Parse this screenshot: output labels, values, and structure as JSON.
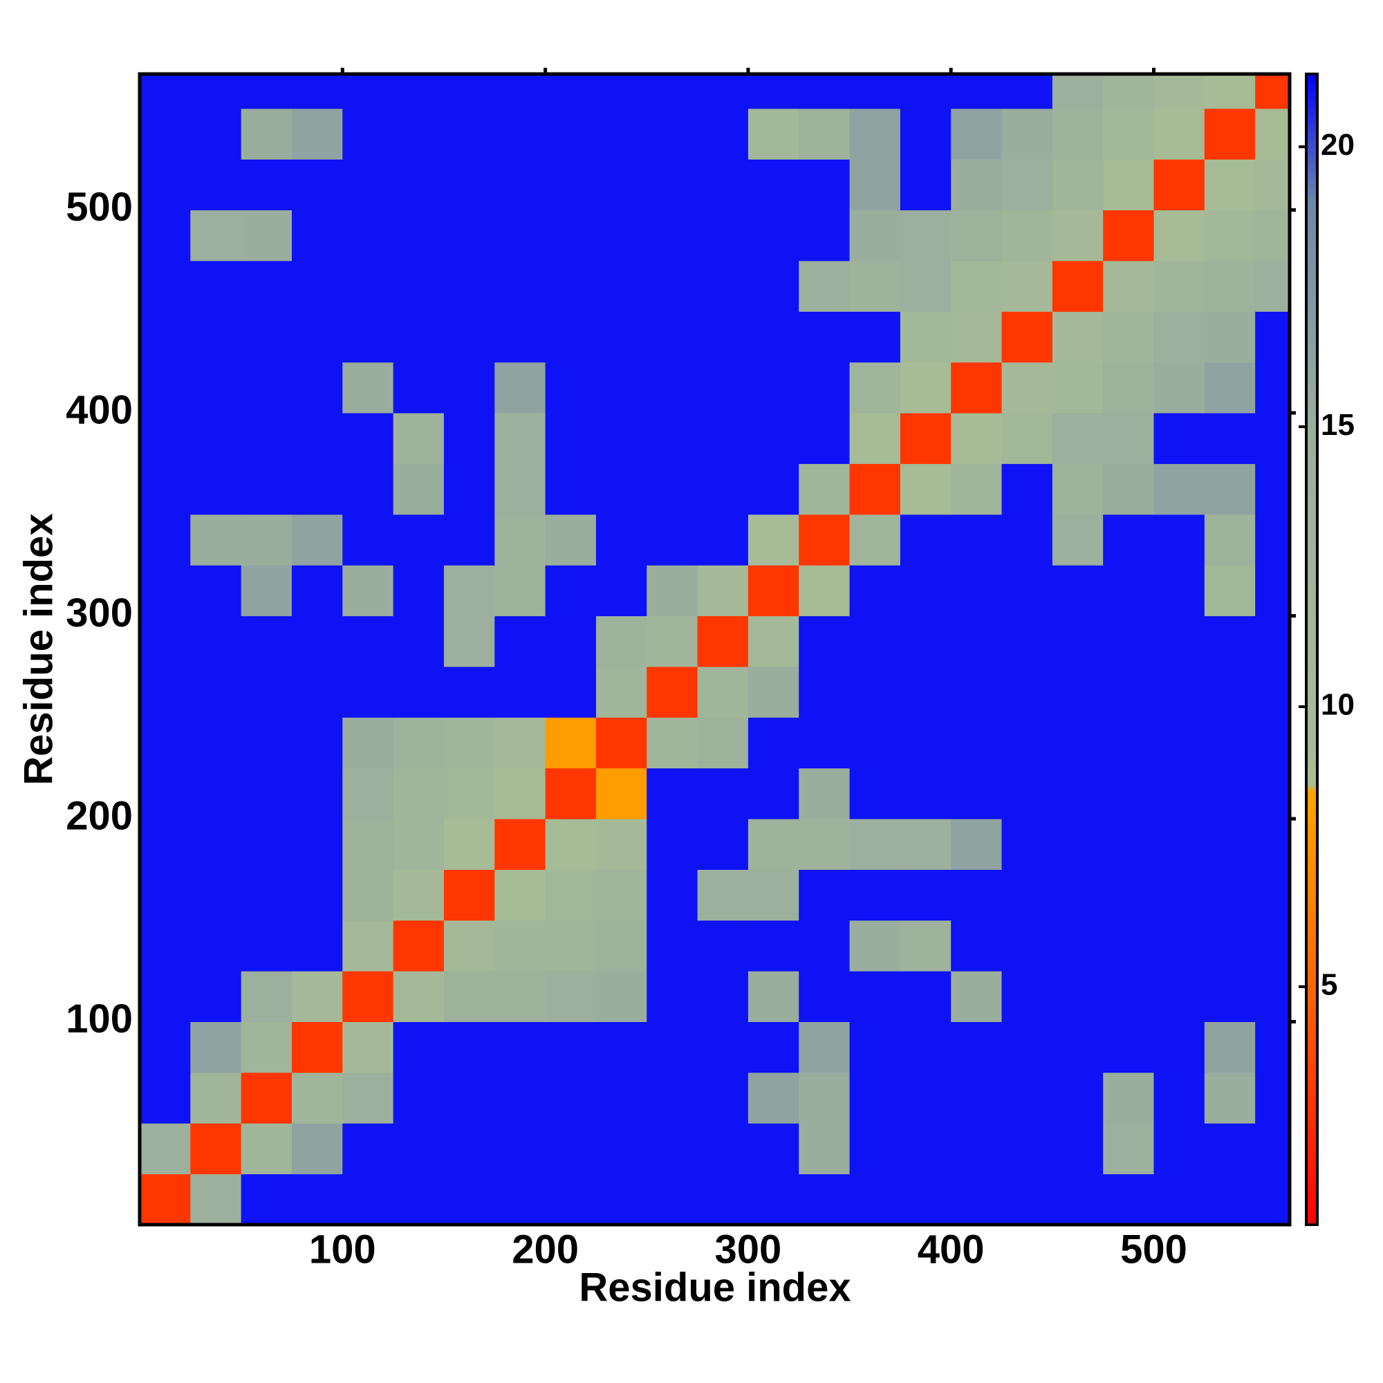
{
  "chart_data": {
    "type": "heatmap",
    "x_label": "Residue index",
    "y_label": "Residue index",
    "x": [
      12.5,
      37.5,
      62.5,
      87.5,
      112.5,
      137.5,
      162.5,
      187.5,
      212.5,
      237.5,
      262.5,
      287.5,
      312.5,
      337.5,
      362.5,
      387.5,
      412.5,
      437.5,
      462.5,
      487.5,
      512.5,
      537.5,
      562.5
    ],
    "y": [
      12.5,
      37.5,
      62.5,
      87.5,
      112.5,
      137.5,
      162.5,
      187.5,
      212.5,
      237.5,
      262.5,
      287.5,
      312.5,
      337.5,
      362.5,
      387.5,
      412.5,
      437.5,
      462.5,
      487.5,
      512.5,
      537.5,
      562.5
    ],
    "values": [
      [
        3,
        14,
        21,
        21,
        21,
        21,
        21,
        21,
        21,
        21,
        21,
        21,
        21,
        21,
        21,
        21,
        21,
        21,
        21,
        21,
        21,
        21,
        21
      ],
      [
        14,
        3,
        12,
        16,
        21,
        21,
        21,
        21,
        21,
        21,
        21,
        21,
        21,
        15,
        21,
        21,
        21,
        21,
        21,
        14,
        21,
        21,
        21
      ],
      [
        21,
        12,
        3,
        12,
        14,
        21,
        21,
        21,
        21,
        21,
        21,
        21,
        16,
        15,
        21,
        21,
        21,
        21,
        21,
        15,
        21,
        15,
        21
      ],
      [
        21,
        16,
        12,
        3,
        10,
        21,
        21,
        21,
        21,
        21,
        21,
        21,
        21,
        16,
        21,
        21,
        21,
        21,
        21,
        21,
        21,
        16,
        21
      ],
      [
        21,
        21,
        14,
        10,
        3,
        10,
        13,
        13,
        14,
        15,
        21,
        21,
        15,
        21,
        21,
        21,
        15,
        21,
        21,
        21,
        21,
        21,
        21
      ],
      [
        21,
        21,
        21,
        21,
        10,
        3,
        10,
        12,
        12,
        13,
        21,
        21,
        21,
        21,
        15,
        13,
        21,
        21,
        21,
        21,
        21,
        21,
        21
      ],
      [
        21,
        21,
        21,
        21,
        13,
        10,
        3,
        9,
        11,
        12,
        21,
        14,
        14,
        21,
        21,
        21,
        21,
        21,
        21,
        21,
        21,
        21,
        21
      ],
      [
        21,
        21,
        21,
        21,
        13,
        12,
        9,
        3,
        9,
        10,
        21,
        21,
        13,
        13,
        14,
        14,
        16,
        21,
        21,
        21,
        21,
        21,
        21
      ],
      [
        21,
        21,
        21,
        21,
        14,
        12,
        11,
        9,
        3,
        8,
        21,
        21,
        21,
        15,
        21,
        21,
        21,
        21,
        21,
        21,
        21,
        21,
        21
      ],
      [
        21,
        21,
        21,
        21,
        15,
        13,
        12,
        10,
        8,
        3,
        12,
        13,
        21,
        21,
        21,
        21,
        21,
        21,
        21,
        21,
        21,
        21,
        21
      ],
      [
        21,
        21,
        21,
        21,
        21,
        21,
        21,
        21,
        21,
        12,
        3,
        12,
        15,
        21,
        21,
        21,
        21,
        21,
        21,
        21,
        21,
        21,
        21
      ],
      [
        21,
        21,
        21,
        21,
        21,
        21,
        14,
        21,
        21,
        13,
        12,
        3,
        10,
        21,
        21,
        21,
        21,
        21,
        21,
        21,
        21,
        21,
        21
      ],
      [
        21,
        21,
        16,
        21,
        15,
        21,
        14,
        13,
        21,
        21,
        15,
        10,
        3,
        9,
        21,
        21,
        21,
        21,
        21,
        21,
        21,
        11,
        21
      ],
      [
        21,
        15,
        15,
        16,
        21,
        21,
        21,
        13,
        15,
        21,
        21,
        21,
        9,
        3,
        12,
        21,
        21,
        21,
        14,
        21,
        21,
        13,
        21
      ],
      [
        21,
        21,
        21,
        21,
        21,
        15,
        21,
        14,
        21,
        21,
        21,
        21,
        21,
        12,
        3,
        9,
        12,
        21,
        13,
        15,
        16,
        16,
        21
      ],
      [
        21,
        21,
        21,
        21,
        21,
        13,
        21,
        14,
        21,
        21,
        21,
        21,
        21,
        21,
        9,
        3,
        9,
        11,
        14,
        14,
        21,
        21,
        21
      ],
      [
        21,
        21,
        21,
        21,
        15,
        21,
        21,
        16,
        21,
        21,
        21,
        21,
        21,
        21,
        12,
        9,
        3,
        10,
        11,
        13,
        15,
        16,
        21
      ],
      [
        21,
        21,
        21,
        21,
        21,
        21,
        21,
        21,
        21,
        21,
        21,
        21,
        21,
        21,
        21,
        11,
        10,
        3,
        10,
        12,
        14,
        15,
        21
      ],
      [
        21,
        21,
        21,
        21,
        21,
        21,
        21,
        21,
        21,
        21,
        21,
        21,
        21,
        14,
        13,
        14,
        11,
        10,
        3,
        10,
        12,
        13,
        14
      ],
      [
        21,
        14,
        15,
        21,
        21,
        21,
        21,
        21,
        21,
        21,
        21,
        21,
        21,
        21,
        15,
        14,
        13,
        12,
        10,
        3,
        9,
        11,
        12
      ],
      [
        21,
        21,
        21,
        21,
        21,
        21,
        21,
        21,
        21,
        21,
        21,
        21,
        21,
        21,
        16,
        21,
        15,
        14,
        12,
        9,
        3,
        9,
        10
      ],
      [
        21,
        21,
        15,
        16,
        21,
        21,
        21,
        21,
        21,
        21,
        21,
        21,
        11,
        13,
        16,
        21,
        16,
        15,
        13,
        11,
        9,
        3,
        9
      ],
      [
        21,
        21,
        21,
        21,
        21,
        21,
        21,
        21,
        21,
        21,
        21,
        21,
        21,
        21,
        21,
        21,
        21,
        21,
        14,
        12,
        10,
        9,
        3
      ]
    ],
    "xlim": [
      0,
      567
    ],
    "ylim": [
      0,
      567
    ],
    "xticks": [
      100,
      200,
      300,
      400,
      500
    ],
    "yticks": [
      100,
      200,
      300,
      400,
      500
    ],
    "colorscale": [
      [
        0.75,
        "#ff0000"
      ],
      [
        5,
        "#ff6600"
      ],
      [
        8.5,
        "#ffa500"
      ],
      [
        8.6,
        "#a8bc96"
      ],
      [
        15,
        "#9aae9e"
      ],
      [
        19,
        "#6f87a8"
      ],
      [
        21.3,
        "#0000ff"
      ]
    ],
    "clim": [
      0.75,
      21.3
    ],
    "cticks": [
      5,
      10,
      15,
      20
    ]
  }
}
